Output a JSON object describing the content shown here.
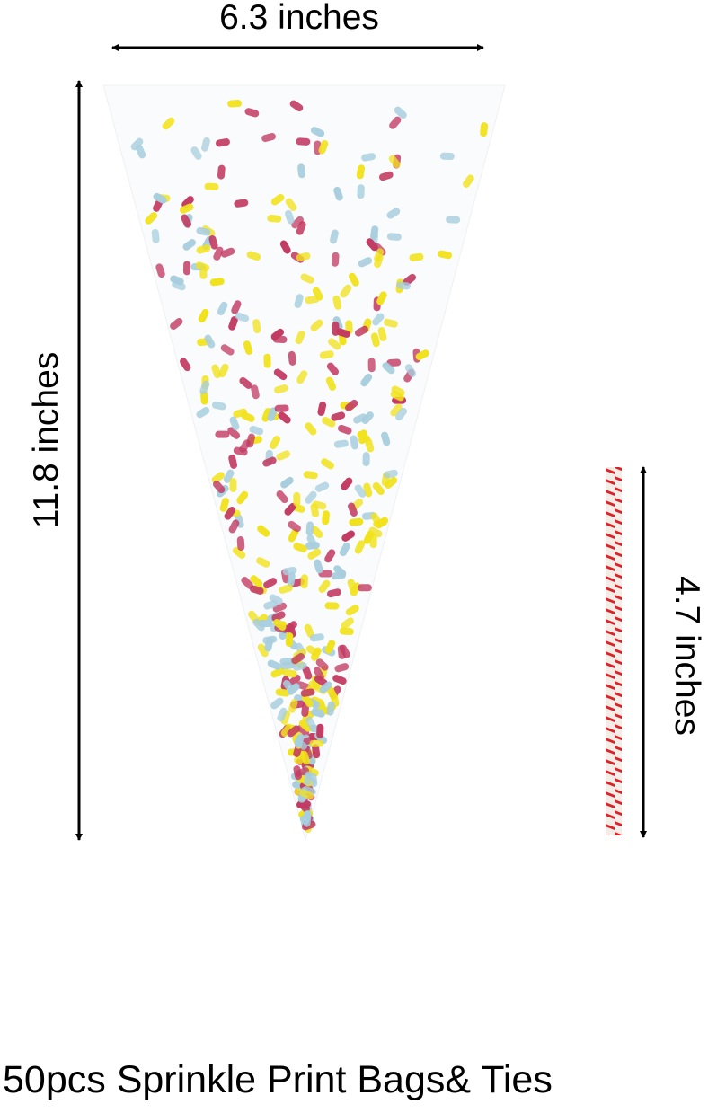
{
  "product": {
    "width_label": "6.3 inches",
    "height_label": "11.8 inches",
    "tie_length_label": "4.7 inches",
    "caption": "50pcs Sprinkle Print Bags& Ties"
  },
  "colors": {
    "sprinkle_yellow": "#f1e21c",
    "sprinkle_pink": "#c23a62",
    "sprinkle_blue": "#a8cede",
    "tie_red": "#d8232a",
    "arrow": "#000000"
  }
}
